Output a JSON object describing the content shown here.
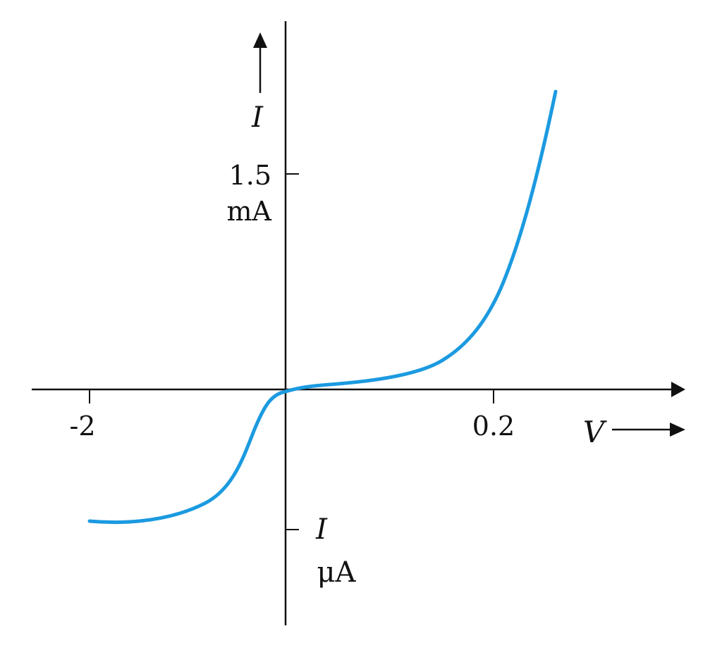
{
  "diagram": {
    "y_axis_label": "I",
    "x_axis_label": "V",
    "y_tick_positive_value": "1.5",
    "y_tick_positive_unit": "mA",
    "y_tick_negative_value": "I",
    "y_tick_negative_unit": "μA",
    "x_tick_negative": "-2",
    "x_tick_positive": "0.2",
    "colors": {
      "curve": "#1b9ae0",
      "axes": "#111111"
    }
  }
}
